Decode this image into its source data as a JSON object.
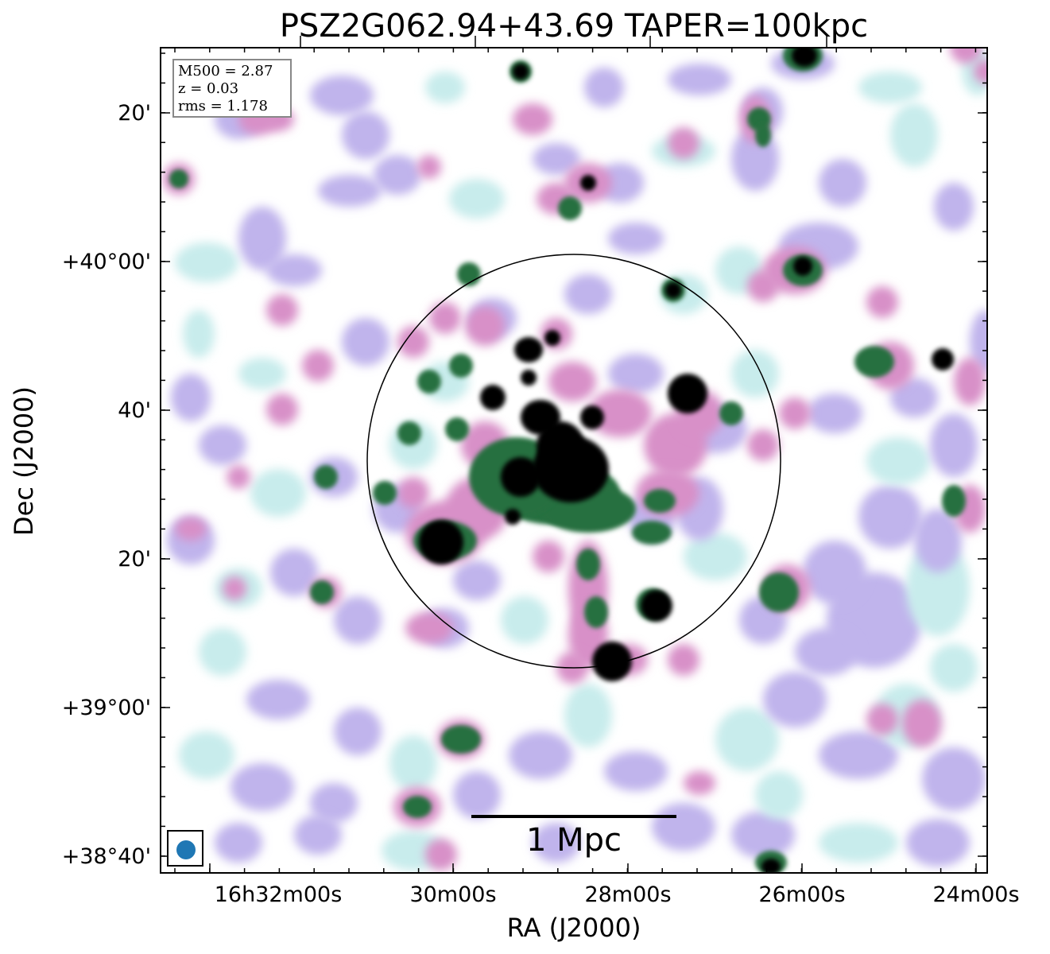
{
  "title": "PSZ2G062.94+43.69 TAPER=100kpc",
  "info": {
    "m500": "M500 = 2.87",
    "z": "z = 0.03",
    "rms": "rms = 1.178"
  },
  "scale_bar_label": "1 Mpc",
  "axes": {
    "xlabel": "RA (J2000)",
    "ylabel": "Dec (J2000)",
    "x_ticks": [
      "16h32m00s",
      "30m00s",
      "28m00s",
      "26m00s",
      "24m00s"
    ],
    "y_ticks": [
      "20'",
      "+40°00'",
      "40'",
      "20'",
      "+39°00'",
      "+38°40'"
    ]
  },
  "colormap": {
    "name": "cubehelix-like",
    "stops": [
      "#ffffff",
      "#c8ecec",
      "#c0b4ec",
      "#d890c8",
      "#c8707c",
      "#287040",
      "#0c3c3c",
      "#000000"
    ]
  },
  "beam_color": "#1f77b4"
}
